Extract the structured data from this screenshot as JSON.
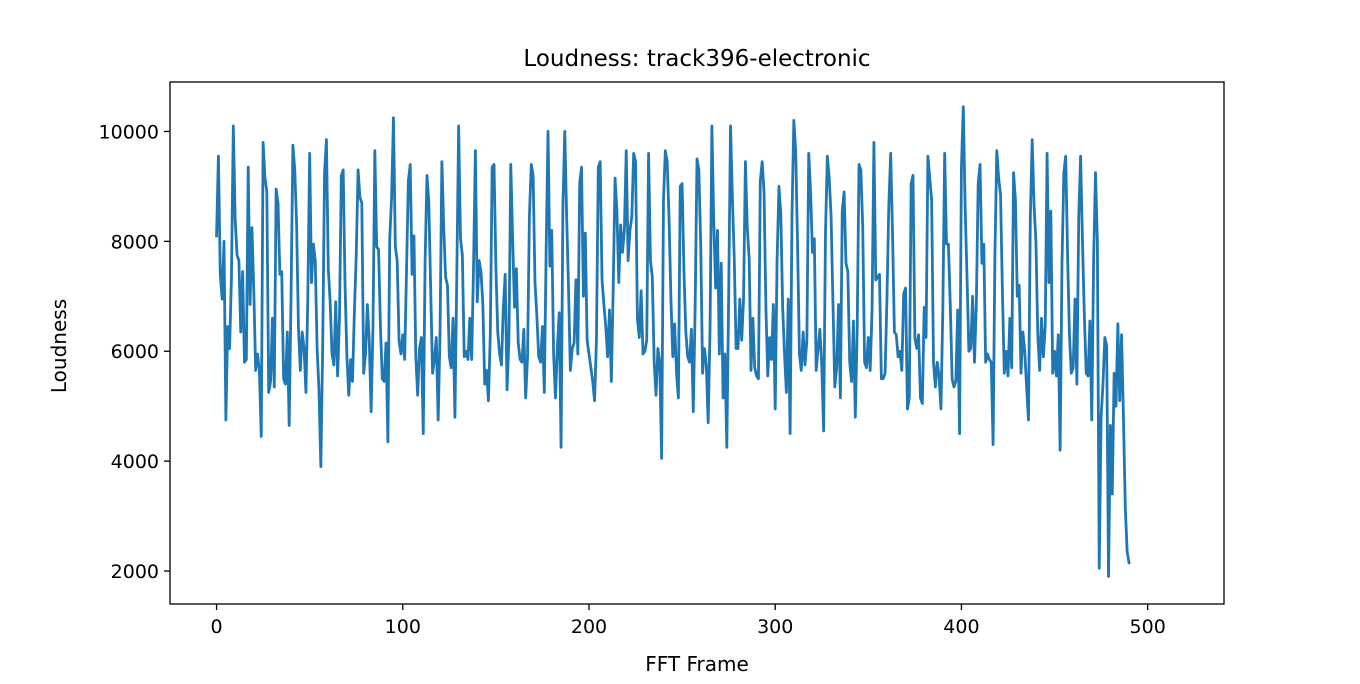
{
  "chart_data": {
    "type": "line",
    "title": "Loudness: track396-electronic",
    "xlabel": "FFT Frame",
    "ylabel": "Loudness",
    "xlim": [
      -25,
      541
    ],
    "ylim": [
      1400,
      10900
    ],
    "xticks": [
      0,
      100,
      200,
      300,
      400,
      500
    ],
    "yticks": [
      2000,
      4000,
      6000,
      8000,
      10000
    ],
    "xtick_labels": [
      "0",
      "100",
      "200",
      "300",
      "400",
      "500"
    ],
    "ytick_labels": [
      "2000",
      "4000",
      "6000",
      "8000",
      "10000"
    ],
    "grid": false,
    "legend": "none",
    "series": [
      {
        "color": "#1f77b4",
        "x_start": 0,
        "x_step": 1,
        "values": [
          8100,
          9550,
          7400,
          6950,
          8000,
          4750,
          6450,
          6050,
          7350,
          10100,
          8400,
          7750,
          7650,
          6350,
          7450,
          5800,
          5850,
          9350,
          6850,
          8250,
          7100,
          5650,
          5950,
          5650,
          4450,
          9800,
          9150,
          8900,
          5250,
          5450,
          6600,
          5350,
          8950,
          8700,
          7400,
          7450,
          5500,
          5400,
          6350,
          4650,
          7000,
          9750,
          9300,
          8300,
          6400,
          5650,
          6350,
          6050,
          5250,
          6950,
          9600,
          7250,
          7950,
          7650,
          6050,
          5300,
          3900,
          6100,
          9250,
          9850,
          7500,
          6900,
          5950,
          5750,
          6900,
          5550,
          6600,
          9200,
          9300,
          7200,
          5900,
          5200,
          5850,
          5450,
          6700,
          7750,
          9300,
          8800,
          8700,
          5600,
          5950,
          6850,
          6200,
          4900,
          6450,
          9650,
          7900,
          7850,
          6450,
          5500,
          5450,
          6150,
          4350,
          8050,
          8800,
          10250,
          7900,
          7650,
          6200,
          5950,
          6300,
          5850,
          7450,
          9100,
          9400,
          7400,
          8100,
          5900,
          5200,
          6050,
          6250,
          4500,
          7650,
          9200,
          8700,
          7100,
          5600,
          5850,
          6250,
          4750,
          6300,
          9450,
          8250,
          7350,
          7200,
          5900,
          5700,
          6600,
          4800,
          7350,
          10100,
          8050,
          7750,
          5900,
          6000,
          5850,
          6600,
          5850,
          7550,
          9650,
          6900,
          7650,
          7450,
          6850,
          5400,
          5650,
          5100,
          6300,
          9350,
          9400,
          7550,
          6350,
          5950,
          5750,
          6800,
          7400,
          5300,
          6200,
          9400,
          8050,
          6800,
          7500,
          6150,
          5850,
          5800,
          6400,
          5150,
          5900,
          8450,
          9400,
          9200,
          7250,
          6650,
          5900,
          5800,
          6450,
          5250,
          7850,
          10000,
          7550,
          8200,
          5950,
          5150,
          6050,
          6700,
          4250,
          8650,
          10000,
          8450,
          7150,
          5650,
          6050,
          6150,
          7300,
          5950,
          9050,
          9350,
          7000,
          8150,
          6200,
          5950,
          5700,
          5450,
          5100,
          6200,
          9350,
          9450,
          7300,
          6850,
          6450,
          5900,
          6750,
          5450,
          7150,
          9150,
          8550,
          7250,
          8300,
          7800,
          8200,
          9650,
          7650,
          8200,
          8450,
          9600,
          9450,
          6600,
          6250,
          7100,
          5950,
          6000,
          6200,
          9600,
          7650,
          7350,
          5800,
          5200,
          6050,
          5800,
          4050,
          8750,
          9650,
          9450,
          8400,
          6950,
          5900,
          6500,
          5600,
          5150,
          9000,
          9050,
          7450,
          6350,
          5900,
          5800,
          6400,
          4900,
          6800,
          9500,
          9300,
          7950,
          5600,
          6050,
          5750,
          4700,
          6400,
          10100,
          8350,
          7150,
          8200,
          5950,
          7600,
          5150,
          5950,
          4250,
          7000,
          10100,
          8800,
          7700,
          6050,
          6050,
          6950,
          6200,
          6950,
          9450,
          8250,
          7700,
          5650,
          6600,
          5700,
          5550,
          5500,
          9100,
          9450,
          8900,
          6800,
          5550,
          6250,
          5850,
          6850,
          4950,
          7650,
          9000,
          8500,
          6800,
          5950,
          5250,
          6950,
          4500,
          8450,
          10200,
          9650,
          7950,
          5950,
          5650,
          6350,
          5750,
          6200,
          9600,
          8900,
          7800,
          8050,
          5650,
          6050,
          6400,
          5750,
          4550,
          8150,
          9550,
          9150,
          8450,
          6900,
          5350,
          5700,
          6850,
          5150,
          8550,
          8900,
          7600,
          7450,
          5800,
          5450,
          6550,
          4800,
          6350,
          9400,
          9300,
          8250,
          5800,
          5700,
          6250,
          5650,
          6750,
          9800,
          7300,
          7350,
          7400,
          5500,
          5500,
          5600,
          6950,
          8650,
          9600,
          8150,
          6350,
          6300,
          5900,
          6000,
          5650,
          7050,
          7150,
          4950,
          5150,
          9050,
          9200,
          6250,
          6050,
          6300,
          5150,
          5050,
          6800,
          6250,
          9550,
          9150,
          8750,
          5800,
          5350,
          5800,
          5550,
          4950,
          6750,
          9600,
          7950,
          7950,
          6850,
          5500,
          5350,
          5450,
          6750,
          4500,
          9350,
          10450,
          8600,
          7350,
          6000,
          6050,
          7000,
          5800,
          6850,
          9050,
          9400,
          7600,
          7950,
          5800,
          5950,
          5850,
          5800,
          4300,
          7800,
          9650,
          9150,
          8850,
          7100,
          5600,
          6000,
          5550,
          6600,
          5700,
          9250,
          8750,
          7000,
          7200,
          5600,
          6350,
          6000,
          5350,
          4750,
          8450,
          9850,
          8650,
          8000,
          6300,
          5650,
          6600,
          5900,
          6450,
          9600,
          7250,
          8550,
          5600,
          6000,
          5550,
          6300,
          4200,
          7600,
          9250,
          9550,
          7750,
          6300,
          5600,
          5700,
          6950,
          5400,
          8450,
          9550,
          8000,
          6650,
          5600,
          5550,
          6550,
          4750,
          7700,
          9250,
          8000,
          2050,
          4800,
          5400,
          6250,
          6100,
          1900,
          4650,
          3400,
          5600,
          5000,
          6500,
          5100,
          6300,
          4800,
          3150,
          2350,
          2150
        ]
      }
    ]
  }
}
